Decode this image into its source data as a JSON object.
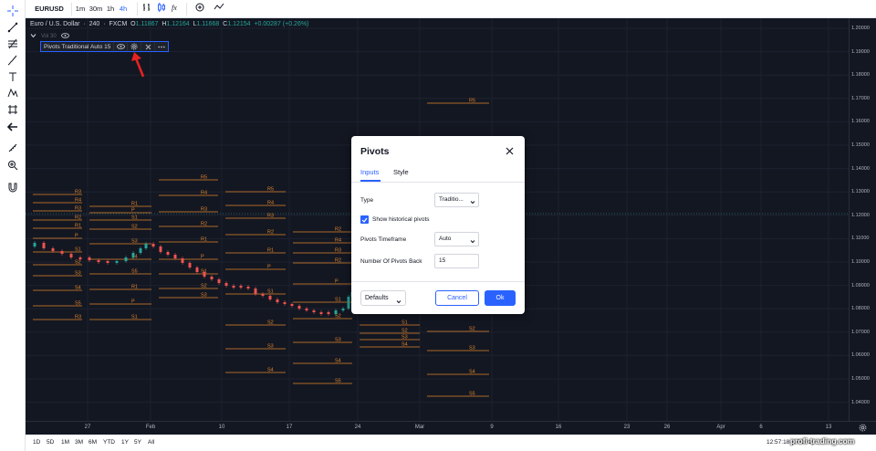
{
  "toolbar": {
    "symbol": "EURUSD",
    "intervals": [
      "1m",
      "30m",
      "1h",
      "4h"
    ],
    "active_interval": "4h"
  },
  "legend": {
    "symbol_name": "Euro / U.S. Dollar",
    "interval": "240",
    "exchange": "FXCM",
    "open": "1.11867",
    "high": "1.12164",
    "low": "1.11668",
    "close": "1.12154",
    "change": "+0.00287 (+0.26%)",
    "vol_label": "Vol 30",
    "indicator_name": "Pivots Traditional Auto 15"
  },
  "colors": {
    "chart_bg": "#131722",
    "pivot_line": "#e0852b",
    "accent": "#2962ff",
    "candle_up": "#26a69a",
    "candle_down": "#ef5350"
  },
  "price_axis": {
    "ticks": [
      "1.20000",
      "1.19000",
      "1.18000",
      "1.17000",
      "1.16000",
      "1.15000",
      "1.14000",
      "1.13000",
      "1.12000",
      "1.11000",
      "1.10000",
      "1.09000",
      "1.08000",
      "1.07000",
      "1.06000",
      "1.05000",
      "1.04000"
    ]
  },
  "time_axis": {
    "ticks": [
      "27",
      "Feb",
      "10",
      "17",
      "24",
      "Mar",
      "9",
      "16",
      "23",
      "26",
      "Apr",
      "6",
      "13"
    ]
  },
  "bottom_bar": {
    "ranges": [
      "1D",
      "5D",
      "1M",
      "3M",
      "6M",
      "YTD",
      "1Y",
      "5Y",
      "All"
    ],
    "time": "12:57:18 (UTC+2)"
  },
  "pivots": {
    "levels": [
      "R5",
      "R4",
      "R3",
      "R2",
      "R1",
      "P",
      "S1",
      "S2",
      "S3",
      "S4",
      "S5"
    ]
  },
  "dialog": {
    "title": "Pivots",
    "tabs": [
      "Inputs",
      "Style"
    ],
    "type_label": "Type",
    "type_value": "Traditio...",
    "show_historical_label": "Show historical pivots",
    "timeframe_label": "Pivots Timeframe",
    "timeframe_value": "Auto",
    "number_back_label": "Number Of Pivots Back",
    "number_back_value": "15",
    "defaults_label": "Defaults",
    "cancel_label": "Cancel",
    "ok_label": "Ok"
  },
  "watermark": "profi-trading.com"
}
